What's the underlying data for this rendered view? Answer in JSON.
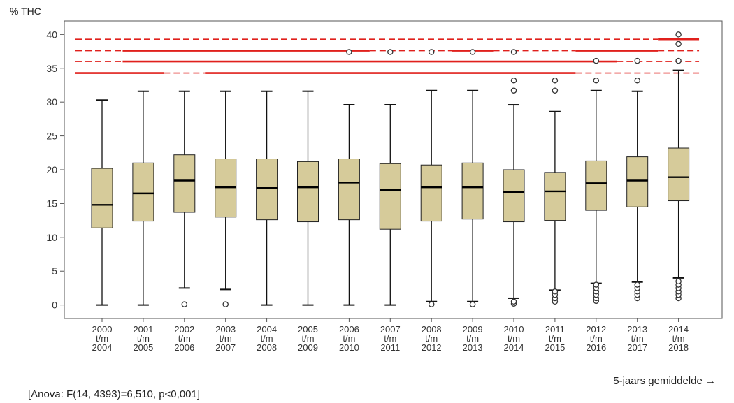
{
  "chart_data": {
    "type": "boxplot",
    "ylabel": "% THC",
    "xlabel": "5-jaars gemiddelde →",
    "annotation": "[Anova: F(14, 4393)=6,510, p<0,001]",
    "ylim": [
      -2,
      42
    ],
    "yticks": [
      0,
      5,
      10,
      15,
      20,
      25,
      30,
      35,
      40
    ],
    "categories": [
      [
        "2000",
        "t/m",
        "2004"
      ],
      [
        "2001",
        "t/m",
        "2005"
      ],
      [
        "2002",
        "t/m",
        "2006"
      ],
      [
        "2003",
        "t/m",
        "2007"
      ],
      [
        "2004",
        "t/m",
        "2008"
      ],
      [
        "2005",
        "t/m",
        "2009"
      ],
      [
        "2006",
        "t/m",
        "2010"
      ],
      [
        "2007",
        "t/m",
        "2011"
      ],
      [
        "2008",
        "t/m",
        "2012"
      ],
      [
        "2009",
        "t/m",
        "2013"
      ],
      [
        "2010",
        "t/m",
        "2014"
      ],
      [
        "2011",
        "t/m",
        "2015"
      ],
      [
        "2012",
        "t/m",
        "2016"
      ],
      [
        "2013",
        "t/m",
        "2017"
      ],
      [
        "2014",
        "t/m",
        "2018"
      ]
    ],
    "boxes": [
      {
        "whisker_low": 0,
        "q1": 11.4,
        "median": 14.8,
        "q3": 20.2,
        "whisker_high": 30.3,
        "outliers": []
      },
      {
        "whisker_low": 0,
        "q1": 12.4,
        "median": 16.5,
        "q3": 21.0,
        "whisker_high": 31.6,
        "outliers": []
      },
      {
        "whisker_low": 2.5,
        "q1": 13.7,
        "median": 18.4,
        "q3": 22.2,
        "whisker_high": 31.6,
        "outliers": [
          0.1
        ]
      },
      {
        "whisker_low": 2.3,
        "q1": 13.0,
        "median": 17.4,
        "q3": 21.6,
        "whisker_high": 31.6,
        "outliers": [
          0.1
        ]
      },
      {
        "whisker_low": 0,
        "q1": 12.6,
        "median": 17.3,
        "q3": 21.6,
        "whisker_high": 31.6,
        "outliers": []
      },
      {
        "whisker_low": 0,
        "q1": 12.3,
        "median": 17.4,
        "q3": 21.2,
        "whisker_high": 31.6,
        "outliers": []
      },
      {
        "whisker_low": 0,
        "q1": 12.6,
        "median": 18.1,
        "q3": 21.6,
        "whisker_high": 29.6,
        "outliers": [
          37.4
        ]
      },
      {
        "whisker_low": 0,
        "q1": 11.2,
        "median": 17.0,
        "q3": 20.9,
        "whisker_high": 29.6,
        "outliers": [
          37.4
        ]
      },
      {
        "whisker_low": 0.5,
        "q1": 12.4,
        "median": 17.4,
        "q3": 20.7,
        "whisker_high": 31.7,
        "outliers": [
          0.1,
          37.4
        ]
      },
      {
        "whisker_low": 0.5,
        "q1": 12.7,
        "median": 17.4,
        "q3": 21.0,
        "whisker_high": 31.7,
        "outliers": [
          0.1,
          37.4
        ]
      },
      {
        "whisker_low": 1.0,
        "q1": 12.3,
        "median": 16.7,
        "q3": 20.0,
        "whisker_high": 29.6,
        "outliers": [
          0.2,
          0.5,
          31.7,
          33.2,
          37.4
        ]
      },
      {
        "whisker_low": 2.2,
        "q1": 12.5,
        "median": 16.8,
        "q3": 19.6,
        "whisker_high": 28.6,
        "outliers": [
          0.5,
          1.0,
          1.5,
          2.0,
          31.7,
          33.2
        ]
      },
      {
        "whisker_low": 3.2,
        "q1": 14.0,
        "median": 18.0,
        "q3": 21.3,
        "whisker_high": 31.7,
        "outliers": [
          0.6,
          1.0,
          1.5,
          2.0,
          2.5,
          3.0,
          33.2,
          36.1
        ]
      },
      {
        "whisker_low": 3.4,
        "q1": 14.5,
        "median": 18.4,
        "q3": 21.9,
        "whisker_high": 31.6,
        "outliers": [
          1.0,
          1.5,
          2.0,
          2.5,
          3.0,
          33.2,
          36.1
        ]
      },
      {
        "whisker_low": 4.0,
        "q1": 15.4,
        "median": 18.9,
        "q3": 23.2,
        "whisker_high": 34.7,
        "outliers": [
          1.0,
          1.5,
          2.0,
          2.5,
          3.0,
          3.5,
          36.1,
          38.6,
          40.0
        ]
      }
    ],
    "reference_lines": [
      {
        "y": 39.3,
        "segments": [
          {
            "from": 0,
            "to": 13.5,
            "style": "dashed"
          },
          {
            "from": 13.5,
            "to": 14.5,
            "style": "solid"
          }
        ]
      },
      {
        "y": 37.6,
        "segments": [
          {
            "from": 0,
            "to": 0.5,
            "style": "dashed"
          },
          {
            "from": 0.5,
            "to": 6.5,
            "style": "solid"
          },
          {
            "from": 6.5,
            "to": 8.5,
            "style": "dashed"
          },
          {
            "from": 8.5,
            "to": 9.5,
            "style": "solid"
          },
          {
            "from": 9.5,
            "to": 11.5,
            "style": "dashed"
          },
          {
            "from": 11.5,
            "to": 13.5,
            "style": "solid"
          },
          {
            "from": 13.5,
            "to": 14.5,
            "style": "dashed"
          }
        ]
      },
      {
        "y": 36.0,
        "segments": [
          {
            "from": 0,
            "to": 0.5,
            "style": "dashed"
          },
          {
            "from": 0.5,
            "to": 12.5,
            "style": "solid"
          },
          {
            "from": 12.5,
            "to": 14.5,
            "style": "dashed"
          }
        ]
      },
      {
        "y": 34.3,
        "segments": [
          {
            "from": 0,
            "to": 1.5,
            "style": "solid"
          },
          {
            "from": 1.5,
            "to": 2.5,
            "style": "dashed"
          },
          {
            "from": 2.5,
            "to": 11.5,
            "style": "solid"
          },
          {
            "from": 11.5,
            "to": 14.5,
            "style": "dashed"
          }
        ]
      }
    ],
    "colors": {
      "box_fill": "#d6cb9a",
      "reference": "#e0201c",
      "axis": "#555555",
      "grid": "#e6e6e6"
    }
  }
}
